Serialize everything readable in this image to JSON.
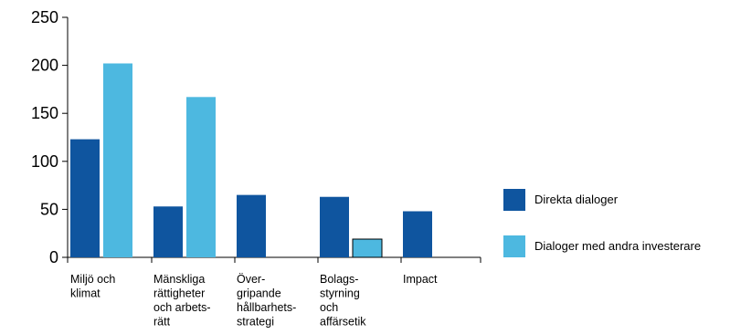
{
  "chart_data": {
    "type": "bar",
    "categories": [
      [
        "Miljö och",
        "klimat"
      ],
      [
        "Mänskliga",
        "rättigheter",
        "och arbets-",
        "rätt"
      ],
      [
        "Över-",
        "gripande",
        "hållbarhets-",
        "strategi"
      ],
      [
        "Bolags-",
        "styrning",
        "och",
        "affärsetik"
      ],
      [
        "Impact"
      ]
    ],
    "series": [
      {
        "name": "Direkta dialoger",
        "color": "#0f559f",
        "values": [
          123,
          53,
          65,
          63,
          48
        ]
      },
      {
        "name": "Dialoger med andra investerare",
        "color": "#4db8e0",
        "values": [
          202,
          167,
          0,
          19,
          0
        ]
      }
    ],
    "ylim": [
      0,
      250
    ],
    "yticks": [
      0,
      50,
      100,
      150,
      200,
      250
    ],
    "legend_position": "right",
    "grid": false
  }
}
